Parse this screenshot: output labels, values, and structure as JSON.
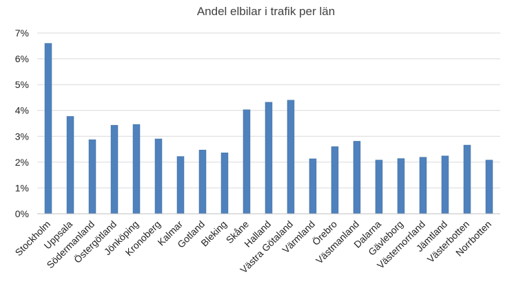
{
  "chart_data": {
    "type": "bar",
    "title": "Andel elbilar i trafik per län",
    "xlabel": "",
    "ylabel": "",
    "ylim": [
      0,
      7
    ],
    "yticks": [
      "0%",
      "1%",
      "2%",
      "3%",
      "4%",
      "5%",
      "6%",
      "7%"
    ],
    "grid": true,
    "legend": "none",
    "bar_color": "#4f81bd",
    "categories": [
      "Stockholm",
      "Uppsala",
      "Södermanland",
      "Östergötland",
      "Jönköping",
      "Kronoberg",
      "Kalmar",
      "Gotland",
      "Bleking",
      "Skåne",
      "Halland",
      "Västra Götaland",
      "Värmland",
      "Örebro",
      "Västmanland",
      "Dalarna",
      "Gävleborg",
      "Västernorrland",
      "Jämtland",
      "Västerbotten",
      "Norrbotten"
    ],
    "values": [
      6.6,
      3.77,
      2.87,
      3.43,
      3.46,
      2.9,
      2.22,
      2.47,
      2.36,
      4.03,
      4.32,
      4.4,
      2.13,
      2.6,
      2.81,
      2.08,
      2.14,
      2.19,
      2.24,
      2.66,
      2.08
    ]
  }
}
